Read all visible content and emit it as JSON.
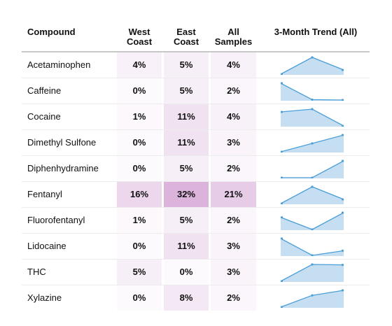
{
  "headers": {
    "compound": "Compound",
    "west_line1": "West",
    "west_line2": "Coast",
    "east_line1": "East",
    "east_line2": "Coast",
    "all_line1": "All",
    "all_line2": "Samples",
    "trend": "3-Month Trend (All)"
  },
  "colors": {
    "heat_rgb": "200,140,200",
    "spark_line": "#4a9fd8",
    "spark_fill": "#c6def2",
    "header_rule": "#c8c8c8"
  },
  "rows": [
    {
      "compound": "Acetaminophen",
      "west": "4%",
      "east": "5%",
      "all": "4%",
      "west_v": 4,
      "east_v": 5,
      "all_v": 4,
      "trend": [
        2,
        6,
        3
      ]
    },
    {
      "compound": "Caffeine",
      "west": "0%",
      "east": "5%",
      "all": "2%",
      "west_v": 0,
      "east_v": 5,
      "all_v": 2,
      "trend": [
        6,
        2,
        1.9
      ]
    },
    {
      "compound": "Cocaine",
      "west": "1%",
      "east": "11%",
      "all": "4%",
      "west_v": 1,
      "east_v": 11,
      "all_v": 4,
      "trend": [
        4,
        4.4,
        2
      ]
    },
    {
      "compound": "Dimethyl Sulfone",
      "west": "0%",
      "east": "11%",
      "all": "3%",
      "west_v": 0,
      "east_v": 11,
      "all_v": 3,
      "trend": [
        2,
        3.5,
        5
      ]
    },
    {
      "compound": "Diphenhydramine",
      "west": "0%",
      "east": "5%",
      "all": "2%",
      "west_v": 0,
      "east_v": 5,
      "all_v": 2,
      "trend": [
        1,
        1,
        6
      ]
    },
    {
      "compound": "Fentanyl",
      "west": "16%",
      "east": "32%",
      "all": "21%",
      "west_v": 16,
      "east_v": 32,
      "all_v": 21,
      "trend": [
        19,
        23,
        20
      ]
    },
    {
      "compound": "Fluorofentanyl",
      "west": "1%",
      "east": "5%",
      "all": "2%",
      "west_v": 1,
      "east_v": 5,
      "all_v": 2,
      "trend": [
        2.8,
        1.5,
        3.3
      ]
    },
    {
      "compound": "Lidocaine",
      "west": "0%",
      "east": "11%",
      "all": "3%",
      "west_v": 0,
      "east_v": 11,
      "all_v": 3,
      "trend": [
        4.3,
        2.5,
        3
      ]
    },
    {
      "compound": "THC",
      "west": "5%",
      "east": "0%",
      "all": "3%",
      "west_v": 5,
      "east_v": 0,
      "all_v": 3,
      "trend": [
        1,
        5,
        4.9
      ]
    },
    {
      "compound": "Xylazine",
      "west": "0%",
      "east": "8%",
      "all": "2%",
      "west_v": 0,
      "east_v": 8,
      "all_v": 2,
      "trend": [
        1,
        3.8,
        5
      ]
    }
  ]
}
